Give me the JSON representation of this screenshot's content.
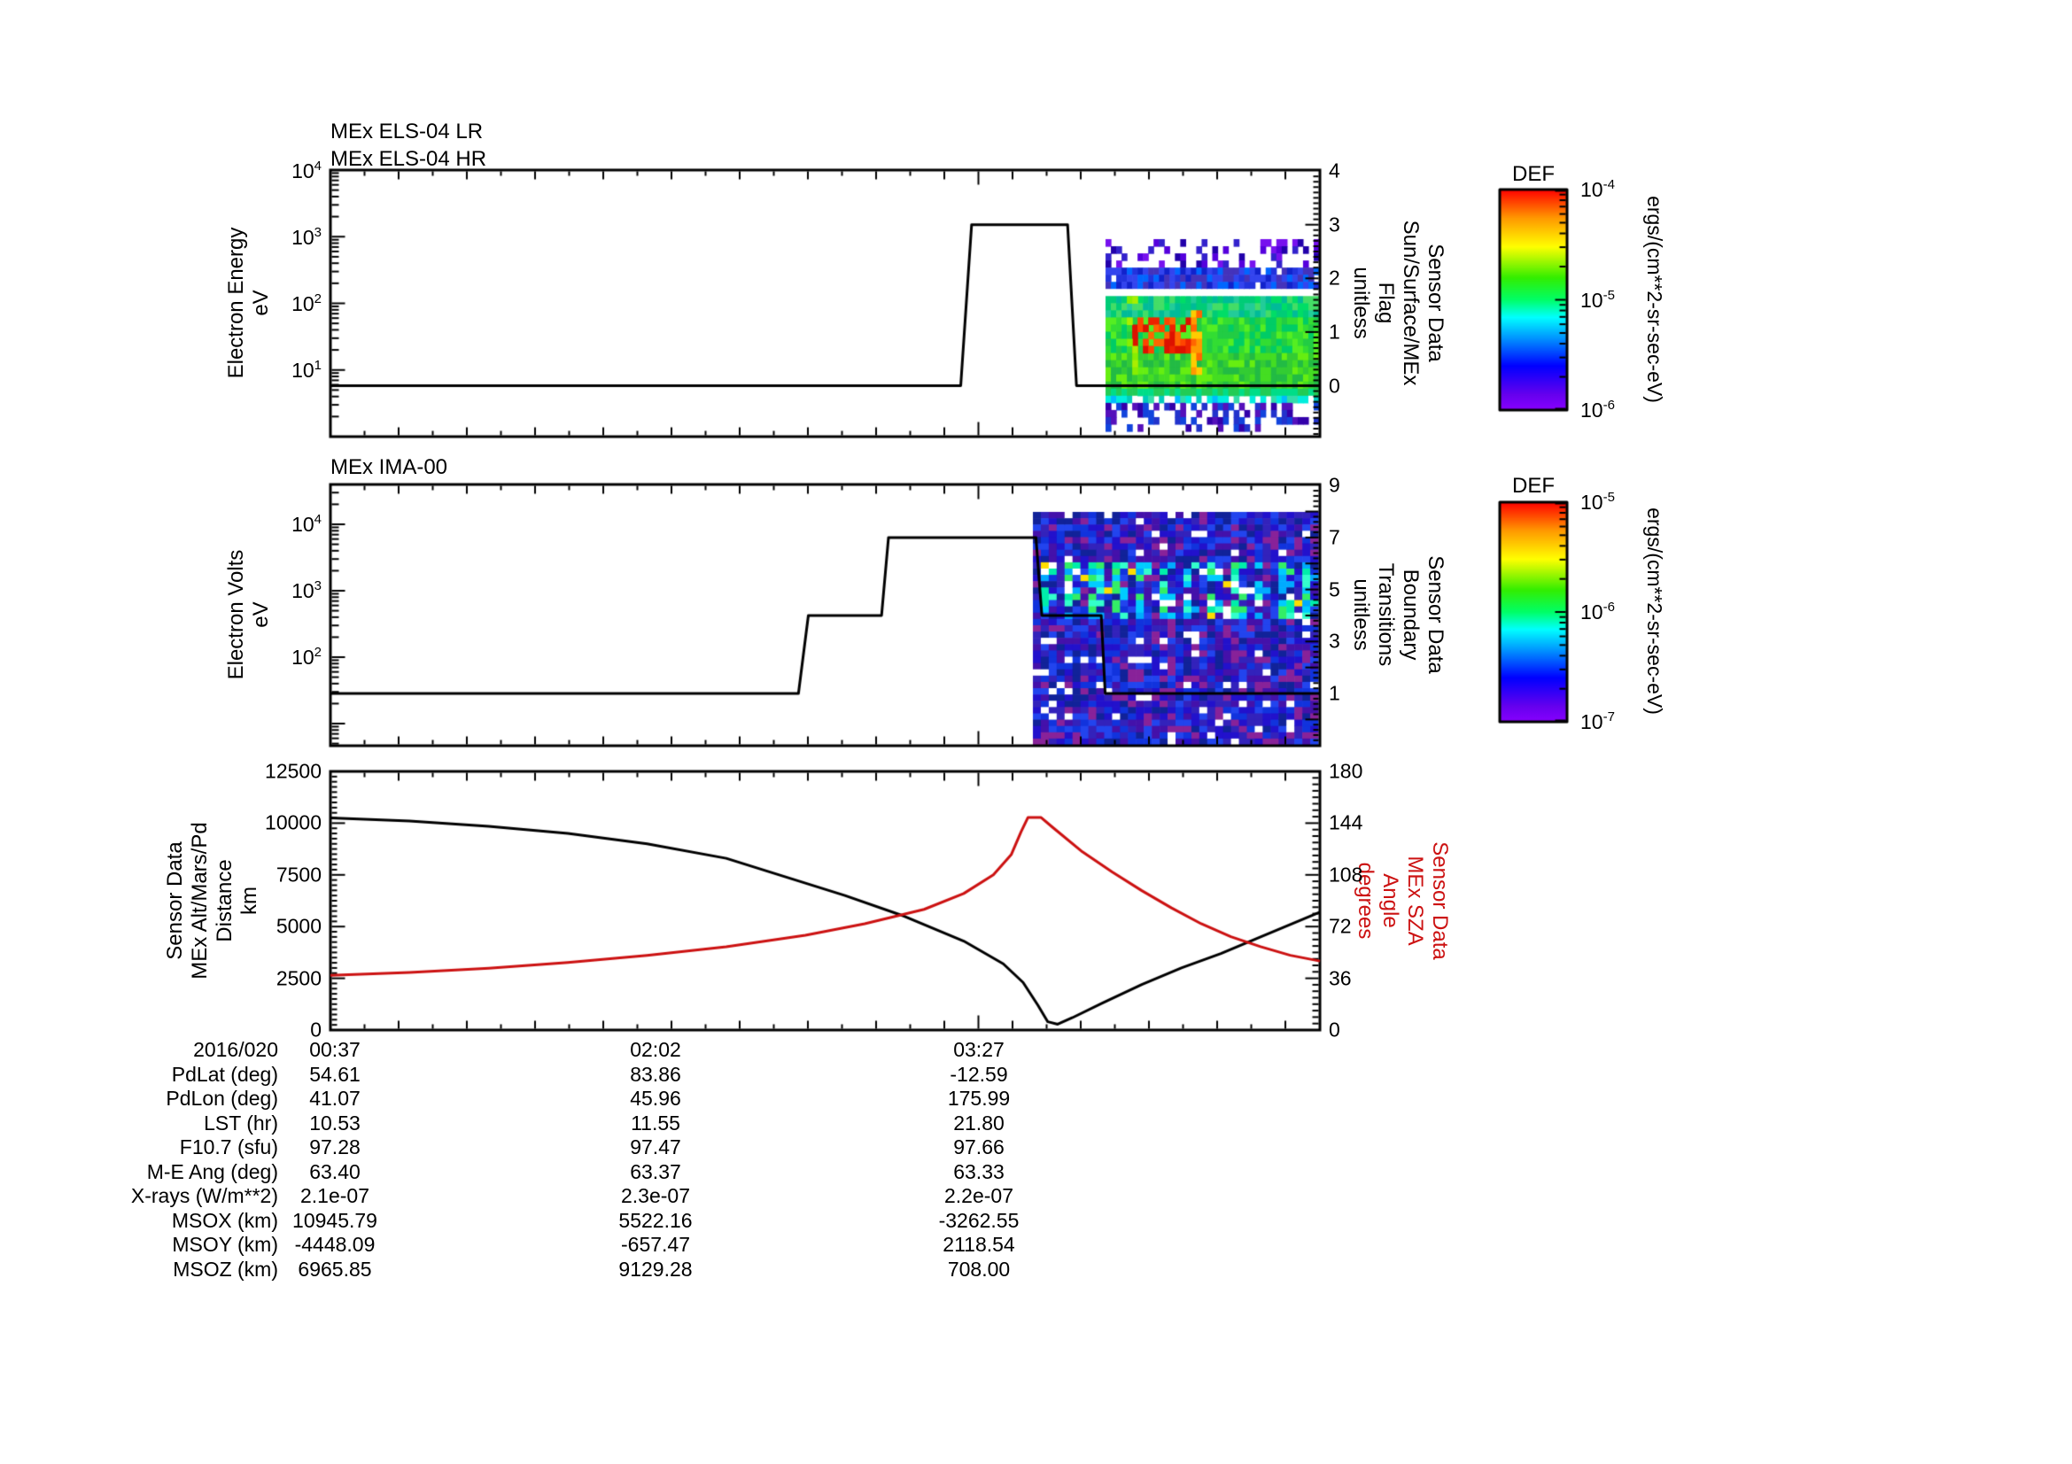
{
  "ui": {
    "panel1": {
      "title_lines": [
        "MEx ELS-04 LR",
        "MEx ELS-04 HR"
      ],
      "left_axis_label": [
        "Electron Energy",
        "eV"
      ],
      "left_ticks": [
        "10^4",
        "10^3",
        "10^2",
        "10^1"
      ],
      "right_axis_label": [
        "Sensor Data",
        "Sun/Surface/MEx",
        "Flag",
        "unitless"
      ],
      "right_ticks": [
        "4",
        "3",
        "2",
        "1",
        "0"
      ]
    },
    "panel2": {
      "title_lines": [
        "MEx IMA-00"
      ],
      "left_axis_label": [
        "Electron Volts",
        "eV"
      ],
      "left_ticks": [
        "10^4",
        "10^3",
        "10^2"
      ],
      "right_axis_label": [
        "Sensor Data",
        "Boundary",
        "Transitions",
        "unitless"
      ],
      "right_ticks": [
        "9",
        "7",
        "5",
        "3",
        "1"
      ]
    },
    "panel3": {
      "left_axis_label": [
        "Sensor Data",
        "MEx Alt/Mars/Pd",
        "Distance",
        "km"
      ],
      "left_ticks": [
        "12500",
        "10000",
        "7500",
        "5000",
        "2500",
        "0"
      ],
      "right_axis_label": [
        "Sensor Data",
        "MEx SZA",
        "Angle",
        "degrees"
      ],
      "right_ticks": [
        "180",
        "144",
        "108",
        "72",
        "36",
        "0"
      ]
    },
    "colorbar1": {
      "title": "DEF",
      "ticks": [
        "10^-4",
        "10^-5",
        "10^-6"
      ],
      "unit": "ergs/(cm**2-sr-sec-eV)"
    },
    "colorbar2": {
      "title": "DEF",
      "ticks": [
        "10^-5",
        "10^-6",
        "10^-7"
      ],
      "unit": "ergs/(cm**2-sr-sec-eV)"
    },
    "colors": {
      "accent_red": "#cc1111",
      "black": "#000000"
    }
  },
  "table": {
    "date_label": "2016/020",
    "time_values": [
      "00:37",
      "02:02",
      "03:27"
    ],
    "rows": [
      {
        "label": "PdLat (deg)",
        "values": [
          "54.61",
          "83.86",
          "-12.59"
        ]
      },
      {
        "label": "PdLon (deg)",
        "values": [
          "41.07",
          "45.96",
          "175.99"
        ]
      },
      {
        "label": "LST (hr)",
        "values": [
          "10.53",
          "11.55",
          "21.80"
        ]
      },
      {
        "label": "F10.7 (sfu)",
        "values": [
          "97.28",
          "97.47",
          "97.66"
        ]
      },
      {
        "label": "M-E Ang (deg)",
        "values": [
          "63.40",
          "63.37",
          "63.33"
        ]
      },
      {
        "label": "X-rays (W/m**2)",
        "values": [
          "2.1e-07",
          "2.3e-07",
          "2.2e-07"
        ]
      },
      {
        "label": "MSOX (km)",
        "values": [
          "10945.79",
          "5522.16",
          "-3262.55"
        ]
      },
      {
        "label": "MSOY (km)",
        "values": [
          "-4448.09",
          "-657.47",
          "2118.54"
        ]
      },
      {
        "label": "MSOZ (km)",
        "values": [
          "6965.85",
          "9129.28",
          "708.00"
        ]
      }
    ]
  },
  "chart_data": [
    {
      "type": "line",
      "panel": "MEx ELS-04 LR/HR",
      "title": [
        "MEx ELS-04 LR",
        "MEx ELS-04 HR"
      ],
      "x_axis": {
        "date": "2016/020",
        "tick_labels": [
          "00:37",
          "02:02",
          "03:27"
        ]
      },
      "y_left": {
        "label": "Electron Energy (eV)",
        "scale": "log",
        "range": [
          1,
          10000
        ]
      },
      "y_right": {
        "label": "Sensor Data Sun/Surface/MEx Flag (unitless)",
        "ticks": [
          0,
          1,
          2,
          3,
          4
        ]
      },
      "flag_series": [
        [
          0,
          0
        ],
        [
          0.637,
          0
        ],
        [
          0.648,
          3
        ],
        [
          0.745,
          3
        ],
        [
          0.754,
          0
        ],
        [
          1,
          0
        ]
      ],
      "spectrogram": {
        "x_range": [
          0.783,
          1.0
        ],
        "value_range": [
          "1e-6",
          "1e-4"
        ],
        "units": "ergs/(cm**2-sr-sec-eV)",
        "px": [
          1248,
          270,
          1489,
          487
        ],
        "cols": 40,
        "rows": 27,
        "bands": [
          {
            "f": [
              0,
              0.165
            ],
            "c": [
              "#5500dd",
              "#3322cc",
              "#7711ee",
              "#2200aa"
            ],
            "d": 0.33
          },
          {
            "f": [
              0.165,
              0.275
            ],
            "c": [
              "#2233dd",
              "#1122cc",
              "#3344ee",
              "#0066ff",
              "#4433bb"
            ],
            "d": 0.96
          },
          {
            "f": [
              0.275,
              0.295
            ],
            "c": [
              "#ffffff"
            ],
            "d": 1
          },
          {
            "f": [
              0.295,
              0.4
            ],
            "c": [
              "#00cc77",
              "#00dd66",
              "#22cc99",
              "#00bb99",
              "#44dd66"
            ],
            "d": 1
          },
          {
            "f": [
              0.4,
              0.6
            ],
            "c": [
              "#33dd33",
              "#22cc44",
              "#55ee22",
              "#00cc66"
            ],
            "d": 1
          },
          {
            "f": [
              0.6,
              0.765
            ],
            "c": [
              "#44dd22",
              "#33cc33",
              "#66ee11",
              "#22bb44"
            ],
            "d": 1
          },
          {
            "f": [
              0.765,
              0.8
            ],
            "c": [
              "#22cc55",
              "#00dd88"
            ],
            "d": 1
          },
          {
            "f": [
              0.8,
              0.86
            ],
            "c": [
              "#00ccbb",
              "#00eedd",
              "#33ddaa",
              "#ffffff",
              "#00bbff"
            ],
            "d": 0.85
          },
          {
            "f": [
              0.86,
              1
            ],
            "c": [
              "#2233cc",
              "#5511bb",
              "#3300aa",
              "#1144dd"
            ],
            "d": 0.42
          }
        ],
        "features": [
          {
            "x": [
              0.13,
              0.42
            ],
            "y": [
              0.4,
              0.6
            ],
            "c": [
              "#ee2200",
              "#ff4400",
              "#dd1100",
              "#ff6600"
            ],
            "d": 0.8
          },
          {
            "x": [
              0.4,
              0.46
            ],
            "y": [
              0.36,
              0.7
            ],
            "c": [
              "#ff9900",
              "#ffcc00",
              "#ff6600"
            ],
            "d": 0.85
          },
          {
            "x": [
              0.1,
              0.14
            ],
            "y": [
              0.3,
              0.7
            ],
            "c": [
              "#88ee00",
              "#aaee00"
            ],
            "d": 0.5
          }
        ]
      }
    },
    {
      "type": "line",
      "panel": "MEx IMA-00",
      "title": [
        "MEx IMA-00"
      ],
      "y_left": {
        "label": "Electron Volts (eV)",
        "scale": "log",
        "decade_ticks": [
          100,
          1000,
          10000
        ]
      },
      "y_right": {
        "label": "Sensor Data Boundary Transitions (unitless)",
        "ticks": [
          1,
          3,
          5,
          7,
          9
        ]
      },
      "boundary_series": [
        [
          0,
          1
        ],
        [
          0.473,
          1
        ],
        [
          0.483,
          4
        ],
        [
          0.557,
          4
        ],
        [
          0.564,
          7
        ],
        [
          0.713,
          7
        ],
        [
          0.719,
          4
        ],
        [
          0.779,
          4
        ],
        [
          0.783,
          1
        ],
        [
          1,
          1
        ]
      ],
      "spectrogram": {
        "x_range": [
          0.71,
          1.0
        ],
        "value_range": [
          "1e-7",
          "1e-5"
        ],
        "units": "ergs/(cm**2-sr-sec-eV)",
        "px": [
          1166,
          578,
          1488,
          841
        ],
        "cols": 36,
        "rows": 37,
        "white": 0.06,
        "bands": [
          {
            "f": [
              0,
              1
            ],
            "c": [
              "#2211cc",
              "#1133dd",
              "#3322bb",
              "#2244ee",
              "#4411aa",
              "#112299",
              "#882299"
            ],
            "d": 1
          }
        ],
        "stripes": {
          "f": [
            0.21,
            0.45
          ],
          "period": 3,
          "c": [
            "#00ccff",
            "#00eeaa",
            "#33ffcc",
            "#00aaff",
            "#33ee66"
          ]
        },
        "features": []
      }
    },
    {
      "type": "line",
      "panel": "Altitude and Solar Zenith Angle",
      "y_left": {
        "label": "Sensor Data MEx Alt/Mars/Pd Distance (km)",
        "range": [
          0,
          12500
        ]
      },
      "y_right": {
        "label": "Sensor Data MEx SZA Angle (degrees)",
        "range": [
          0,
          180
        ]
      },
      "series": [
        {
          "name": "MEx Alt/Mars/Pd Distance (km)",
          "color": "#000000",
          "axis": "left",
          "points": [
            [
              0,
              10250
            ],
            [
              0.08,
              10100
            ],
            [
              0.16,
              9850
            ],
            [
              0.24,
              9500
            ],
            [
              0.32,
              9000
            ],
            [
              0.4,
              8300
            ],
            [
              0.46,
              7400
            ],
            [
              0.52,
              6500
            ],
            [
              0.58,
              5500
            ],
            [
              0.64,
              4300
            ],
            [
              0.68,
              3200
            ],
            [
              0.7,
              2300
            ],
            [
              0.715,
              1200
            ],
            [
              0.725,
              400
            ],
            [
              0.735,
              280
            ],
            [
              0.75,
              600
            ],
            [
              0.78,
              1300
            ],
            [
              0.82,
              2200
            ],
            [
              0.86,
              3000
            ],
            [
              0.9,
              3700
            ],
            [
              0.94,
              4500
            ],
            [
              0.97,
              5100
            ],
            [
              1,
              5700
            ]
          ]
        },
        {
          "name": "MEx SZA Angle (degrees)",
          "color": "#cc1111",
          "axis": "right",
          "points": [
            [
              0,
              38
            ],
            [
              0.08,
              40
            ],
            [
              0.16,
              43
            ],
            [
              0.24,
              47
            ],
            [
              0.32,
              52
            ],
            [
              0.4,
              58
            ],
            [
              0.48,
              66
            ],
            [
              0.54,
              74
            ],
            [
              0.6,
              84
            ],
            [
              0.64,
              95
            ],
            [
              0.67,
              108
            ],
            [
              0.688,
              122
            ],
            [
              0.698,
              138
            ],
            [
              0.705,
              148
            ],
            [
              0.718,
              148
            ],
            [
              0.73,
              141
            ],
            [
              0.76,
              124
            ],
            [
              0.79,
              110
            ],
            [
              0.82,
              97
            ],
            [
              0.85,
              85
            ],
            [
              0.88,
              74
            ],
            [
              0.91,
              65
            ],
            [
              0.94,
              58
            ],
            [
              0.97,
              52
            ],
            [
              1,
              48
            ]
          ]
        }
      ]
    }
  ]
}
